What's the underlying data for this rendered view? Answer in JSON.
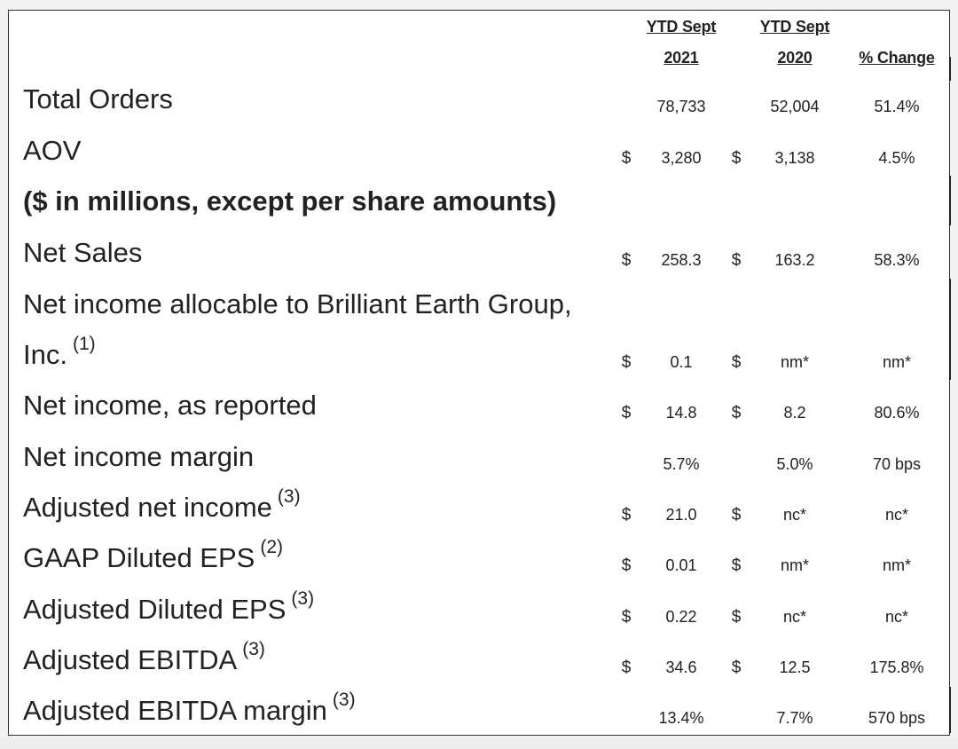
{
  "header": {
    "col1": {
      "line1": "YTD Sept",
      "line2": "2021"
    },
    "col2": {
      "line1": "YTD Sept",
      "line2": "2020"
    },
    "col3": "% Change"
  },
  "rows": [
    {
      "label": "Total Orders",
      "sup": "",
      "d1": "",
      "v1": "78,733",
      "d2": "",
      "v2": "52,004",
      "v3": "51.4%"
    },
    {
      "label": "AOV",
      "sup": "",
      "d1": "$",
      "v1": "3,280",
      "d2": "$",
      "v2": "3,138",
      "v3": "4.5%"
    },
    {
      "label": "($ in millions, except per share amounts)",
      "sup": "",
      "d1": "",
      "v1": "",
      "d2": "",
      "v2": "",
      "v3": ""
    },
    {
      "label": "Net Sales",
      "sup": "",
      "d1": "$",
      "v1": "258.3",
      "d2": "$",
      "v2": "163.2",
      "v3": "58.3%"
    },
    {
      "label": "Net income allocable to Brilliant Earth Group,",
      "sup": "",
      "d1": "",
      "v1": "",
      "d2": "",
      "v2": "",
      "v3": ""
    },
    {
      "label": "Inc.",
      "sup": "(1)",
      "d1": "$",
      "v1": "0.1",
      "d2": "$",
      "v2": "nm*",
      "v3": "nm*"
    },
    {
      "label": "Net income, as reported",
      "sup": "",
      "d1": "$",
      "v1": "14.8",
      "d2": "$",
      "v2": "8.2",
      "v3": "80.6%"
    },
    {
      "label": "Net income margin",
      "sup": "",
      "d1": "",
      "v1": "5.7%",
      "d2": "",
      "v2": "5.0%",
      "v3": "70 bps"
    },
    {
      "label": "Adjusted net income",
      "sup": "(3)",
      "d1": "$",
      "v1": "21.0",
      "d2": "$",
      "v2": "nc*",
      "v3": "nc*"
    },
    {
      "label": "GAAP Diluted EPS",
      "sup": "(2)",
      "d1": "$",
      "v1": "0.01",
      "d2": "$",
      "v2": "nm*",
      "v3": "nm*"
    },
    {
      "label": "Adjusted Diluted EPS",
      "sup": "(3)",
      "d1": "$",
      "v1": "0.22",
      "d2": "$",
      "v2": "nc*",
      "v3": "nc*"
    },
    {
      "label": "Adjusted EBITDA",
      "sup": "(3)",
      "d1": "$",
      "v1": "34.6",
      "d2": "$",
      "v2": "12.5",
      "v3": "175.8%"
    },
    {
      "label": "Adjusted EBITDA margin",
      "sup": "(3)",
      "d1": "",
      "v1": "13.4%",
      "d2": "",
      "v2": "7.7%",
      "v3": "570 bps"
    }
  ]
}
